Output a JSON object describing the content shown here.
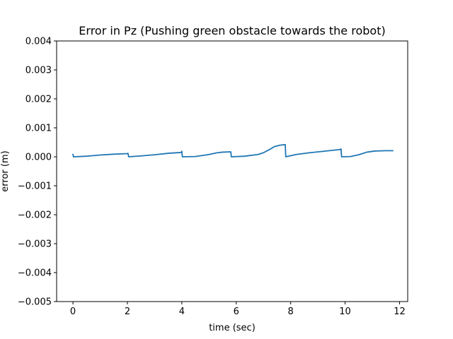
{
  "chart_data": {
    "type": "line",
    "title": "Error in Pz (Pushing green obstacle towards the robot)",
    "xlabel": "time (sec)",
    "ylabel": "error (m)",
    "xlim": [
      -0.6,
      12.3
    ],
    "ylim": [
      -0.005,
      0.004
    ],
    "xticks": [
      0,
      2,
      4,
      6,
      8,
      10,
      12
    ],
    "xtick_labels": [
      "0",
      "2",
      "4",
      "6",
      "8",
      "10",
      "12"
    ],
    "yticks": [
      -0.005,
      -0.004,
      -0.003,
      -0.002,
      -0.001,
      0.0,
      0.001,
      0.002,
      0.003,
      0.004
    ],
    "ytick_labels": [
      "−0.005",
      "−0.004",
      "−0.003",
      "−0.002",
      "−0.001",
      "0.000",
      "0.001",
      "0.002",
      "0.003",
      "0.004"
    ],
    "grid": false,
    "series": [
      {
        "color": "#1f77b4",
        "x": [
          0.0,
          0.02,
          0.5,
          1.0,
          1.5,
          2.0,
          2.02,
          2.05,
          2.5,
          3.0,
          3.5,
          3.98,
          4.0,
          4.02,
          4.5,
          5.0,
          5.3,
          5.5,
          5.78,
          5.8,
          5.82,
          6.3,
          6.8,
          7.0,
          7.2,
          7.4,
          7.6,
          7.78,
          7.8,
          7.82,
          8.2,
          8.7,
          9.2,
          9.8,
          9.85,
          9.87,
          10.2,
          10.5,
          10.8,
          11.1,
          11.5,
          11.75
        ],
        "y": [
          8e-05,
          0.0,
          2e-05,
          6e-05,
          9e-05,
          0.00011,
          0.00012,
          0.0,
          3e-05,
          7e-05,
          0.00012,
          0.00015,
          0.00019,
          0.0,
          1e-05,
          8e-05,
          0.00014,
          0.00016,
          0.00017,
          0.00017,
          0.0,
          2e-05,
          8e-05,
          0.00014,
          0.00024,
          0.00035,
          0.0004,
          0.00042,
          0.00042,
          0.0,
          8e-05,
          0.00014,
          0.00019,
          0.00025,
          0.00027,
          0.0,
          1e-05,
          7e-05,
          0.00016,
          0.0002,
          0.00021,
          0.00021
        ]
      }
    ]
  }
}
